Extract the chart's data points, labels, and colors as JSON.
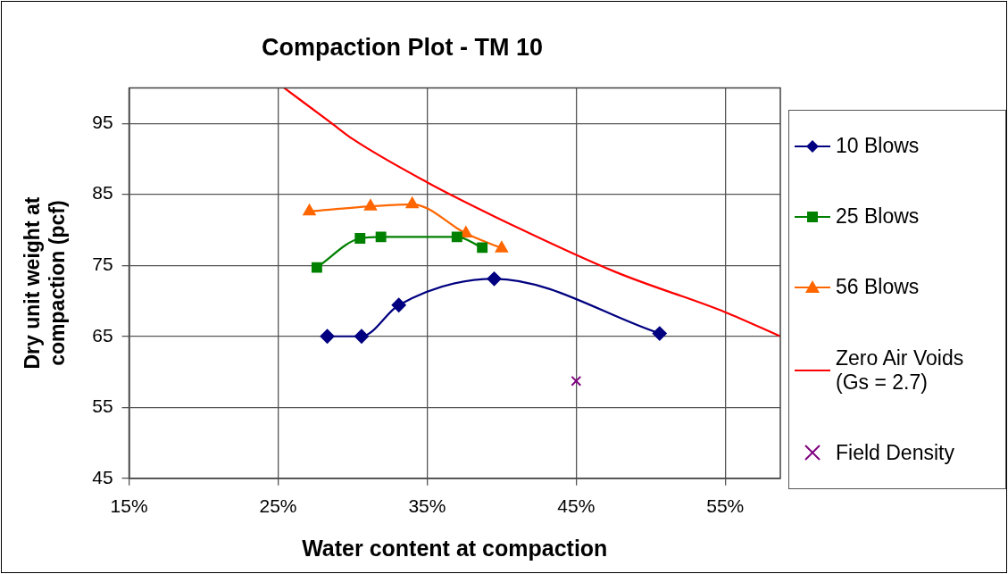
{
  "chart_data": {
    "type": "line",
    "title": "Compaction Plot - TM 10",
    "xlabel": "Water content at compaction",
    "ylabel": "Dry unit weight at compaction (pcf)",
    "xlim": [
      15,
      58.7
    ],
    "xticks": [
      {
        "value": 15,
        "label": "15%"
      },
      {
        "value": 25,
        "label": "25%"
      },
      {
        "value": 35,
        "label": "35%"
      },
      {
        "value": 45,
        "label": "45%"
      },
      {
        "value": 55,
        "label": "55%"
      }
    ],
    "ylim": [
      45,
      100
    ],
    "yticks": [
      45,
      55,
      65,
      75,
      85,
      95
    ],
    "grid": true,
    "legend": "right",
    "series": [
      {
        "name": "10 Blows",
        "color": "#000080",
        "marker": "diamond",
        "x": [
          28.3,
          30.6,
          33.1,
          39.5,
          50.6
        ],
        "values": [
          65.0,
          65.0,
          69.4,
          73.1,
          65.4
        ]
      },
      {
        "name": "25 Blows",
        "color": "#008000",
        "marker": "square",
        "x": [
          27.6,
          30.5,
          31.9,
          37.0,
          38.7
        ],
        "values": [
          74.7,
          78.8,
          79.0,
          79.0,
          77.5
        ]
      },
      {
        "name": "56 Blows",
        "color": "#ff6600",
        "marker": "triangle",
        "x": [
          27.1,
          31.2,
          34.0,
          37.6,
          40.0
        ],
        "values": [
          82.6,
          83.3,
          83.6,
          79.5,
          77.4
        ]
      },
      {
        "name": "Zero Air Voids (Gs = 2.7)",
        "color": "#ff0000",
        "marker": "none",
        "x": [
          25.4,
          28.6,
          30.0,
          35.0,
          39.6,
          47.6,
          55.0,
          58.7
        ],
        "values": [
          100,
          95,
          92.8,
          86.7,
          81.8,
          74.1,
          68.4,
          65
        ]
      },
      {
        "name": "Field Density",
        "type": "scatter",
        "color": "#800080",
        "marker": "cross",
        "x": [
          45
        ],
        "values": [
          58.7
        ]
      }
    ]
  }
}
